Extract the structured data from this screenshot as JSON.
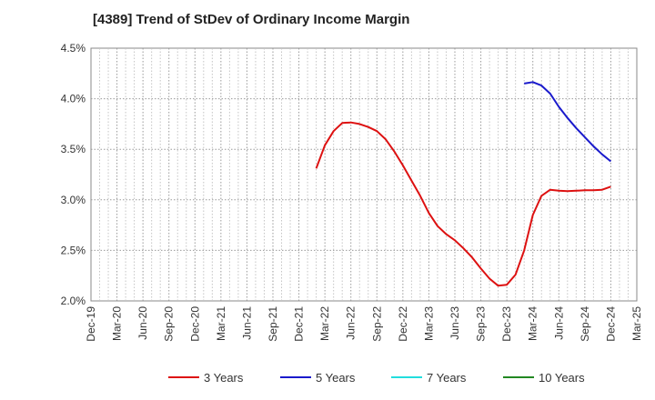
{
  "chart_data": {
    "type": "line",
    "title": "[4389]  Trend of StDev of Ordinary Income Margin",
    "xlabel": "",
    "ylabel": "",
    "x_ticks": [
      "Dec-19",
      "Mar-20",
      "Jun-20",
      "Sep-20",
      "Dec-20",
      "Mar-21",
      "Jun-21",
      "Sep-21",
      "Dec-21",
      "Mar-22",
      "Jun-22",
      "Sep-22",
      "Dec-22",
      "Mar-23",
      "Jun-23",
      "Sep-23",
      "Dec-23",
      "Mar-24",
      "Jun-24",
      "Sep-24",
      "Dec-24",
      "Mar-25"
    ],
    "y_ticks": [
      "2.0%",
      "2.5%",
      "3.0%",
      "3.5%",
      "4.0%",
      "4.5%"
    ],
    "ylim": [
      2.0,
      4.5
    ],
    "grid": true,
    "legend_position": "bottom",
    "series": [
      {
        "name": "3 Years",
        "color": "#dd1111",
        "points": [
          [
            "Feb-22",
            3.31
          ],
          [
            "Mar-22",
            3.54
          ],
          [
            "Apr-22",
            3.68
          ],
          [
            "May-22",
            3.76
          ],
          [
            "Jun-22",
            3.765
          ],
          [
            "Jul-22",
            3.75
          ],
          [
            "Aug-22",
            3.72
          ],
          [
            "Sep-22",
            3.68
          ],
          [
            "Oct-22",
            3.6
          ],
          [
            "Nov-22",
            3.48
          ],
          [
            "Dec-22",
            3.34
          ],
          [
            "Jan-23",
            3.19
          ],
          [
            "Feb-23",
            3.04
          ],
          [
            "Mar-23",
            2.87
          ],
          [
            "Apr-23",
            2.74
          ],
          [
            "May-23",
            2.66
          ],
          [
            "Jun-23",
            2.6
          ],
          [
            "Jul-23",
            2.52
          ],
          [
            "Aug-23",
            2.43
          ],
          [
            "Sep-23",
            2.32
          ],
          [
            "Oct-23",
            2.22
          ],
          [
            "Nov-23",
            2.15
          ],
          [
            "Dec-23",
            2.16
          ],
          [
            "Jan-24",
            2.26
          ],
          [
            "Feb-24",
            2.5
          ],
          [
            "Mar-24",
            2.85
          ],
          [
            "Apr-24",
            3.04
          ],
          [
            "May-24",
            3.1
          ],
          [
            "Jun-24",
            3.09
          ],
          [
            "Jul-24",
            3.085
          ],
          [
            "Aug-24",
            3.09
          ],
          [
            "Sep-24",
            3.095
          ],
          [
            "Oct-24",
            3.095
          ],
          [
            "Nov-24",
            3.1
          ],
          [
            "Dec-24",
            3.13
          ]
        ]
      },
      {
        "name": "5 Years",
        "color": "#1a1acc",
        "points": [
          [
            "Feb-24",
            4.15
          ],
          [
            "Mar-24",
            4.165
          ],
          [
            "Apr-24",
            4.13
          ],
          [
            "May-24",
            4.05
          ],
          [
            "Jun-24",
            3.92
          ],
          [
            "Jul-24",
            3.81
          ],
          [
            "Aug-24",
            3.71
          ],
          [
            "Sep-24",
            3.62
          ],
          [
            "Oct-24",
            3.53
          ],
          [
            "Nov-24",
            3.45
          ],
          [
            "Dec-24",
            3.38
          ]
        ]
      },
      {
        "name": "7 Years",
        "color": "#22dddd",
        "points": []
      },
      {
        "name": "10 Years",
        "color": "#228822",
        "points": []
      }
    ]
  }
}
